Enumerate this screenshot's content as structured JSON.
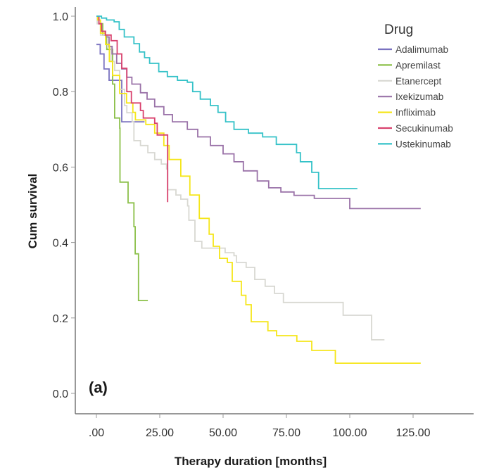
{
  "chart_data": {
    "type": "line",
    "subtype": "kaplan-meier-step",
    "panel_label": "(a)",
    "xlabel": "Therapy duration [months]",
    "ylabel": "Cum survival",
    "xlim": [
      0,
      125
    ],
    "ylim": [
      0,
      1
    ],
    "xticks": [
      ".00",
      "25.00",
      "50.00",
      "75.00",
      "100.00",
      "125.00"
    ],
    "xtick_values": [
      0,
      25,
      50,
      75,
      100,
      125
    ],
    "yticks": [
      "0.0",
      "0.2",
      "0.4",
      "0.6",
      "0.8",
      "1.0"
    ],
    "ytick_values": [
      0,
      0.2,
      0.4,
      0.6,
      0.8,
      1.0
    ],
    "grid": false,
    "legend": {
      "title": "Drug",
      "placement": "top-right"
    },
    "series": [
      {
        "name": "Adalimumab",
        "color": "#7a72c0",
        "start": 0.925,
        "t": [
          1.5,
          3,
          5,
          10
        ],
        "s": [
          0.9,
          0.86,
          0.83,
          0.72
        ],
        "end": 19
      },
      {
        "name": "Apremilast",
        "color": "#8cc04a",
        "start": 1.0,
        "t": [
          1,
          2.5,
          4.1,
          6.4,
          7.2,
          9.2,
          9.3,
          12.5,
          14.8,
          15.3,
          16.6
        ],
        "s": [
          0.98,
          0.95,
          0.912,
          0.82,
          0.73,
          0.703,
          0.56,
          0.505,
          0.442,
          0.37,
          0.246
        ],
        "end": 20.3
      },
      {
        "name": "Etanercept",
        "color": "#d8d8d2",
        "start": 1.0,
        "t": [
          0.3,
          1.6,
          4.4,
          5.8,
          7.2,
          9.2,
          11.1,
          12,
          14.1,
          14.8,
          17.4,
          20.3,
          23,
          25.6,
          27.7,
          28.1,
          31.4,
          33.3,
          36,
          36.5,
          38.9,
          41.6,
          50.8,
          54.3,
          55.3,
          59.1,
          62.5,
          66.6,
          70.3,
          73.8,
          97.4,
          108.6
        ],
        "s": [
          0.98,
          0.95,
          0.918,
          0.88,
          0.856,
          0.806,
          0.763,
          0.744,
          0.72,
          0.67,
          0.657,
          0.638,
          0.62,
          0.608,
          0.595,
          0.54,
          0.526,
          0.515,
          0.497,
          0.459,
          0.403,
          0.385,
          0.373,
          0.365,
          0.347,
          0.334,
          0.302,
          0.284,
          0.265,
          0.241,
          0.207,
          0.142
        ],
        "end": 113.7
      },
      {
        "name": "Ixekizumab",
        "color": "#9a72a8",
        "start": 1.0,
        "t": [
          1,
          2,
          3.6,
          5,
          6.2,
          8,
          10,
          12,
          14,
          17.4,
          20,
          23,
          26.6,
          30,
          35.9,
          40,
          45,
          50,
          54.3,
          58,
          63.5,
          68,
          72.8,
          78,
          86,
          100
        ],
        "s": [
          0.98,
          0.96,
          0.945,
          0.92,
          0.9,
          0.875,
          0.86,
          0.838,
          0.82,
          0.797,
          0.78,
          0.76,
          0.739,
          0.72,
          0.7,
          0.68,
          0.657,
          0.635,
          0.614,
          0.59,
          0.563,
          0.545,
          0.534,
          0.525,
          0.517,
          0.49
        ],
        "end": 128
      },
      {
        "name": "Infliximab",
        "color": "#f5e61a",
        "start": 1.0,
        "t": [
          0.5,
          1.6,
          3.6,
          5.1,
          6.4,
          9.2,
          11.9,
          14.4,
          15.4,
          19.5,
          23,
          26.6,
          28.7,
          33.3,
          36.9,
          40.6,
          44.5,
          46.1,
          48.6,
          51.7,
          53.6,
          57.2,
          59,
          61.1,
          67.7,
          71.1,
          79.1,
          85,
          94.3
        ],
        "s": [
          0.99,
          0.955,
          0.925,
          0.88,
          0.843,
          0.795,
          0.77,
          0.745,
          0.725,
          0.713,
          0.69,
          0.657,
          0.62,
          0.576,
          0.526,
          0.464,
          0.422,
          0.39,
          0.358,
          0.347,
          0.297,
          0.26,
          0.235,
          0.19,
          0.166,
          0.153,
          0.138,
          0.114,
          0.08
        ],
        "end": 128
      },
      {
        "name": "Secukinumab",
        "color": "#d9426e",
        "start": 1.0,
        "t": [
          1,
          2,
          3.5,
          5.8,
          8.2,
          10,
          12,
          13.8,
          17.4,
          18.5,
          23,
          24,
          28.1
        ],
        "s": [
          0.98,
          0.96,
          0.95,
          0.935,
          0.9,
          0.862,
          0.8,
          0.77,
          0.75,
          0.73,
          0.716,
          0.685,
          0.507
        ],
        "end": 28.1
      },
      {
        "name": "Ustekinumab",
        "color": "#35c2c8",
        "start": 1.0,
        "t": [
          2,
          4,
          7,
          9,
          11,
          14.8,
          17,
          19,
          21,
          24.6,
          28,
          32,
          35.9,
          38,
          41,
          45,
          48,
          51,
          54.3,
          60,
          65.6,
          71,
          79,
          80.5,
          85,
          87.7
        ],
        "s": [
          0.995,
          0.99,
          0.985,
          0.965,
          0.945,
          0.927,
          0.905,
          0.89,
          0.875,
          0.853,
          0.84,
          0.83,
          0.825,
          0.8,
          0.78,
          0.763,
          0.745,
          0.72,
          0.7,
          0.69,
          0.68,
          0.66,
          0.638,
          0.614,
          0.586,
          0.543
        ],
        "end": 103
      }
    ]
  }
}
